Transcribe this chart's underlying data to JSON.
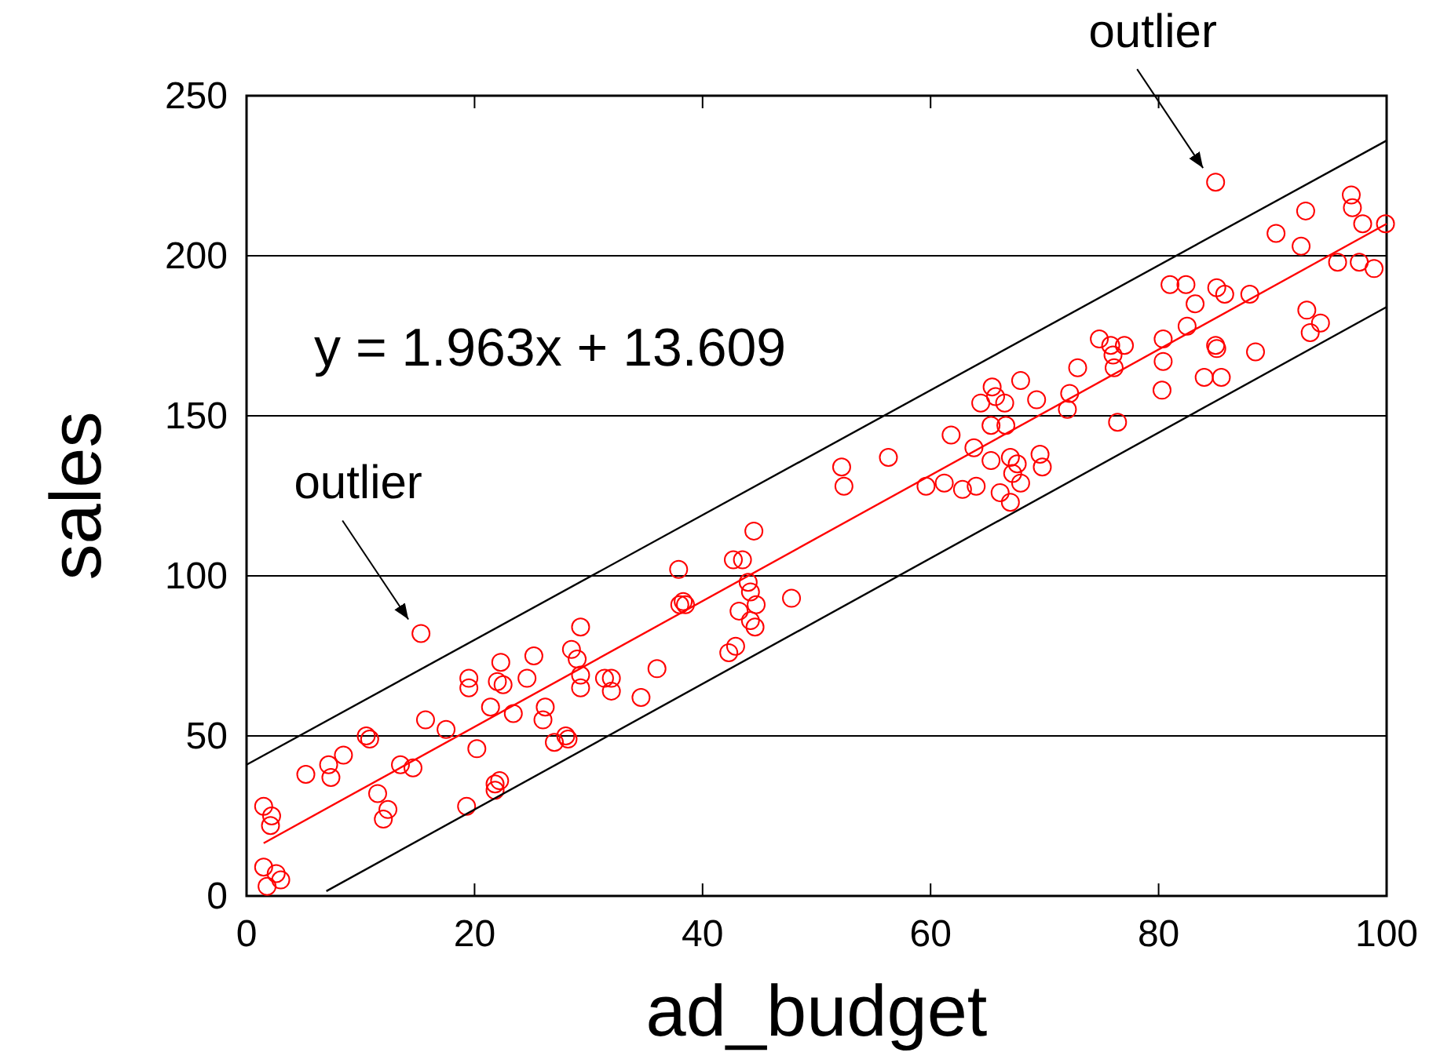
{
  "chart_data": {
    "type": "scatter",
    "xlabel": "ad_budget",
    "ylabel": "sales",
    "xlim": [
      0,
      100
    ],
    "ylim": [
      0,
      250
    ],
    "xticks": [
      0,
      20,
      40,
      60,
      80,
      100
    ],
    "yticks": [
      0,
      50,
      100,
      150,
      200,
      250
    ],
    "grid": "y",
    "marker": "circle",
    "annotations": [
      "y = 1.963x + 13.609",
      {
        "text": "outlier",
        "x": 15.3,
        "y": 82
      },
      {
        "text": "outlier",
        "x": 85,
        "y": 223
      }
    ],
    "series": [
      {
        "color": "#ff0000",
        "x": [
          1.5,
          1.5,
          1.8,
          2.2,
          2.1,
          2.6,
          3,
          5.2,
          7.2,
          7.4,
          8.5,
          10.5,
          10.8,
          11.5,
          12,
          12.4,
          13.5,
          14.6,
          15.3,
          15.7,
          17.5,
          19.3,
          19.5,
          19.5,
          20.2,
          21.4,
          21.8,
          21.8,
          22.2,
          22,
          22.3,
          22.5,
          23.4,
          24.6,
          25.2,
          26,
          26.2,
          27,
          28,
          28.2,
          28.5,
          29,
          29.3,
          29.3,
          29.3,
          31.4,
          32,
          32,
          34.6,
          36,
          37.9,
          38,
          38.3,
          38.5,
          42.3,
          42.7,
          42.9,
          43.2,
          43.5,
          44.2,
          44.2,
          44,
          44.5,
          44.6,
          44.7,
          47.8,
          52.2,
          52.4,
          56.3,
          59.6,
          61.2,
          61.8,
          62.8,
          64,
          63.8,
          64.4,
          65.3,
          65.4,
          65.7,
          65.3,
          66.1,
          66.5,
          66.6,
          67,
          67.2,
          67,
          67.6,
          67.9,
          67.9,
          69.3,
          69.6,
          69.8,
          72,
          72.2,
          72.9,
          74.8,
          75.8,
          76,
          76.1,
          76.4,
          77,
          80.3,
          80.4,
          80.4,
          81,
          82.4,
          82.5,
          83.2,
          84,
          85,
          85.1,
          85.1,
          85.5,
          85.8,
          85,
          88,
          88.5,
          90.3,
          92.5,
          92.9,
          93,
          93.3,
          94.2,
          95.7,
          96.9,
          97,
          97.6,
          97.9,
          98.9,
          99.9
        ],
        "values": [
          28,
          9,
          3,
          25,
          22,
          7,
          5,
          38,
          41,
          37,
          44,
          50,
          49,
          32,
          24,
          27,
          41,
          40,
          82,
          55,
          52,
          28,
          68,
          65,
          46,
          59,
          35,
          33,
          36,
          67,
          73,
          66,
          57,
          68,
          75,
          55,
          59,
          48,
          50,
          49,
          77,
          74,
          84,
          69,
          65,
          68,
          64,
          68,
          62,
          71,
          102,
          91,
          92,
          91,
          76,
          105,
          78,
          89,
          105,
          95,
          86,
          98,
          114,
          84,
          91,
          93,
          134,
          128,
          137,
          128,
          129,
          144,
          127,
          128,
          140,
          154,
          136,
          159,
          156,
          147,
          126,
          154,
          147,
          137,
          132,
          123,
          135,
          161,
          129,
          155,
          138,
          134,
          152,
          157,
          165,
          174,
          172,
          169,
          165,
          148,
          172,
          158,
          174,
          167,
          191,
          191,
          178,
          185,
          162,
          172,
          190,
          171,
          162,
          188,
          223,
          188,
          170,
          207,
          203,
          214,
          183,
          176,
          179,
          198,
          219,
          215,
          198,
          210,
          196,
          210
        ]
      },
      {
        "type": "line",
        "marker": "none",
        "color": "#ff0000",
        "x": [
          1.5,
          100
        ],
        "values": [
          16.5,
          210
        ]
      },
      {
        "type": "line",
        "marker": "none",
        "color": "#000000",
        "x": [
          0,
          100
        ],
        "values": [
          41,
          236
        ]
      },
      {
        "type": "line",
        "marker": "none",
        "color": "#000000",
        "x": [
          7,
          100
        ],
        "values": [
          1.5,
          184
        ]
      }
    ]
  }
}
